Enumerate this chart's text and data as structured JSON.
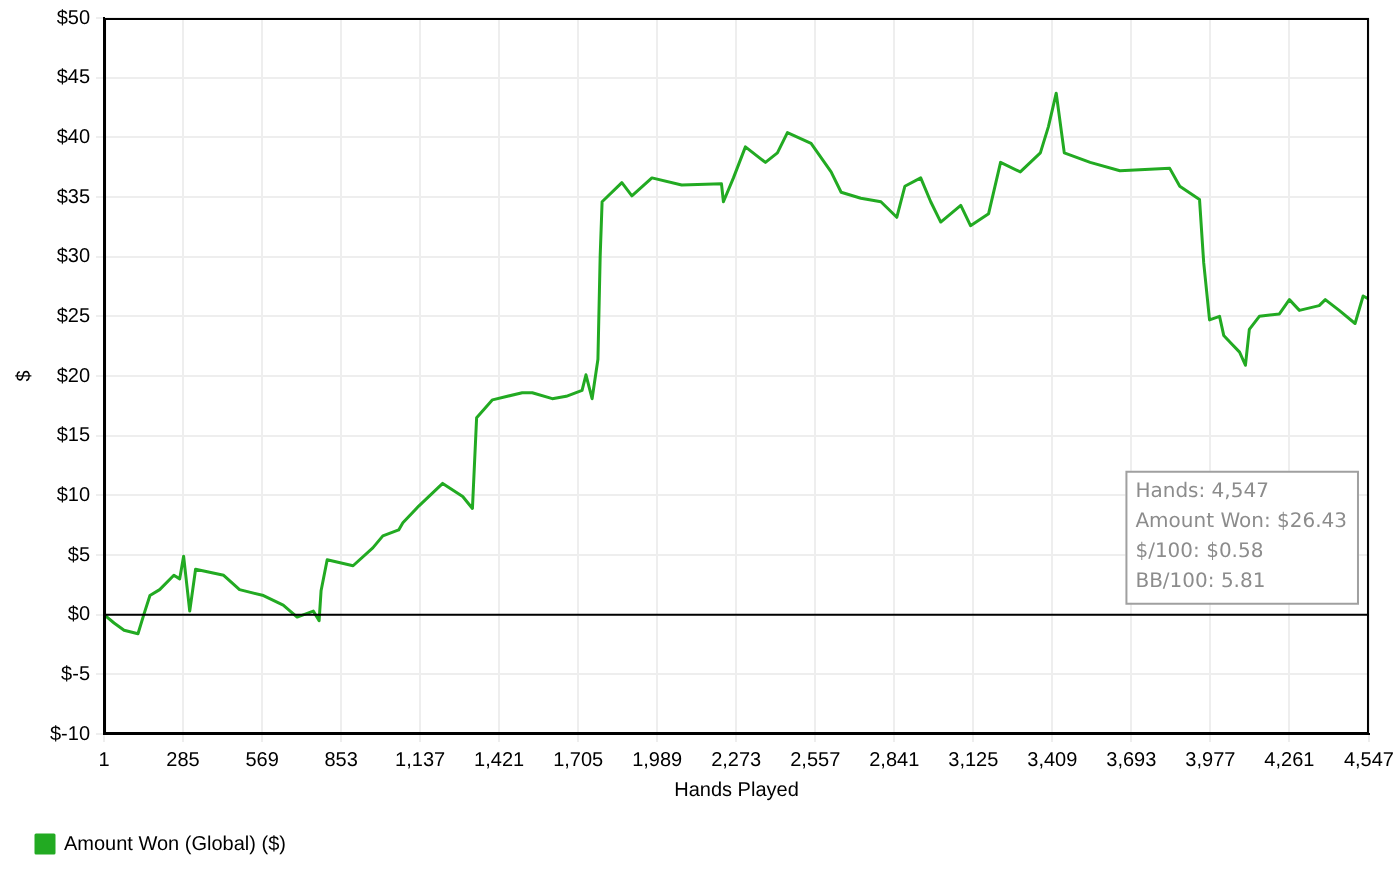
{
  "chart_data": {
    "type": "line",
    "xlabel": "Hands Played",
    "ylabel": "$",
    "xlim": [
      1,
      4547
    ],
    "xticks": [
      {
        "value": 1,
        "label": "1"
      },
      {
        "value": 285,
        "label": "285"
      },
      {
        "value": 569,
        "label": "569"
      },
      {
        "value": 853,
        "label": "853"
      },
      {
        "value": 1137,
        "label": "1,137"
      },
      {
        "value": 1421,
        "label": "1,421"
      },
      {
        "value": 1705,
        "label": "1,705"
      },
      {
        "value": 1989,
        "label": "1,989"
      },
      {
        "value": 2273,
        "label": "2,273"
      },
      {
        "value": 2557,
        "label": "2,557"
      },
      {
        "value": 2841,
        "label": "2,841"
      },
      {
        "value": 3125,
        "label": "3,125"
      },
      {
        "value": 3409,
        "label": "3,409"
      },
      {
        "value": 3693,
        "label": "3,693"
      },
      {
        "value": 3977,
        "label": "3,977"
      },
      {
        "value": 4261,
        "label": "4,261"
      },
      {
        "value": 4547,
        "label": "4,547"
      }
    ],
    "ylim": [
      -10,
      50
    ],
    "yticks": [
      {
        "value": -10,
        "label": "$-10"
      },
      {
        "value": -5,
        "label": "$-5"
      },
      {
        "value": 0,
        "label": "$0"
      },
      {
        "value": 5,
        "label": "$5"
      },
      {
        "value": 10,
        "label": "$10"
      },
      {
        "value": 15,
        "label": "$15"
      },
      {
        "value": 20,
        "label": "$20"
      },
      {
        "value": 25,
        "label": "$25"
      },
      {
        "value": 30,
        "label": "$30"
      },
      {
        "value": 35,
        "label": "$35"
      },
      {
        "value": 40,
        "label": "$40"
      },
      {
        "value": 45,
        "label": "$45"
      },
      {
        "value": 50,
        "label": "$50"
      }
    ],
    "grid": true,
    "legend": "bottom left",
    "marker": "none",
    "line_style": "solid",
    "ref_lines": [
      {
        "axis": "y",
        "value": 0,
        "color": "#000000"
      }
    ],
    "annotations": [
      "Hands: 4,547",
      "Amount Won: $26.43",
      "$/100: $0.58",
      "BB/100: 5.81"
    ],
    "series": [
      {
        "name": "Amount Won (Global) ($)",
        "color": "#22aa22",
        "x": [
          1,
          37,
          73,
          123,
          144,
          166,
          201,
          252,
          273,
          287,
          309,
          330,
          431,
          488,
          574,
          645,
          695,
          753,
          774,
          781,
          803,
          896,
          967,
          1003,
          1060,
          1075,
          1132,
          1218,
          1290,
          1325,
          1340,
          1397,
          1504,
          1540,
          1612,
          1662,
          1719,
          1733,
          1755,
          1776,
          1784,
          1791,
          1862,
          1898,
          1970,
          2077,
          2220,
          2227,
          2263,
          2306,
          2378,
          2421,
          2457,
          2542,
          2614,
          2650,
          2721,
          2793,
          2850,
          2879,
          2936,
          2972,
          3008,
          3080,
          3115,
          3180,
          3201,
          3223,
          3294,
          3366,
          3395,
          3423,
          3452,
          3545,
          3652,
          3831,
          3867,
          3938,
          3953,
          3974,
          4010,
          4025,
          4053,
          4082,
          4103,
          4117,
          4153,
          4225,
          4261,
          4297,
          4368,
          4390,
          4440,
          4497,
          4526,
          4547
        ],
        "values": [
          0,
          -0.7,
          -1.3,
          -1.6,
          0,
          1.6,
          2.1,
          3.3,
          3,
          4.9,
          0.3,
          3.8,
          3.3,
          2.1,
          1.6,
          0.8,
          -0.2,
          0.3,
          -0.5,
          2,
          4.6,
          4.1,
          5.6,
          6.6,
          7.1,
          7.7,
          9.1,
          11,
          9.9,
          8.9,
          16.5,
          18,
          18.6,
          18.6,
          18.1,
          18.3,
          18.8,
          20.1,
          18.1,
          21.4,
          30,
          34.6,
          36.2,
          35.1,
          36.6,
          36,
          36.1,
          34.6,
          36.6,
          39.2,
          37.9,
          38.7,
          40.4,
          39.5,
          37.1,
          35.4,
          34.9,
          34.6,
          33.3,
          35.9,
          36.6,
          34.6,
          32.9,
          34.3,
          32.6,
          33.6,
          35.7,
          37.9,
          37.1,
          38.7,
          40.9,
          43.7,
          38.7,
          37.9,
          37.2,
          37.4,
          35.9,
          34.8,
          29.5,
          24.7,
          25,
          23.4,
          22.7,
          22,
          20.9,
          23.9,
          25,
          25.2,
          26.4,
          25.5,
          25.9,
          26.4,
          25.5,
          24.4,
          26.7,
          26.43
        ]
      }
    ]
  }
}
